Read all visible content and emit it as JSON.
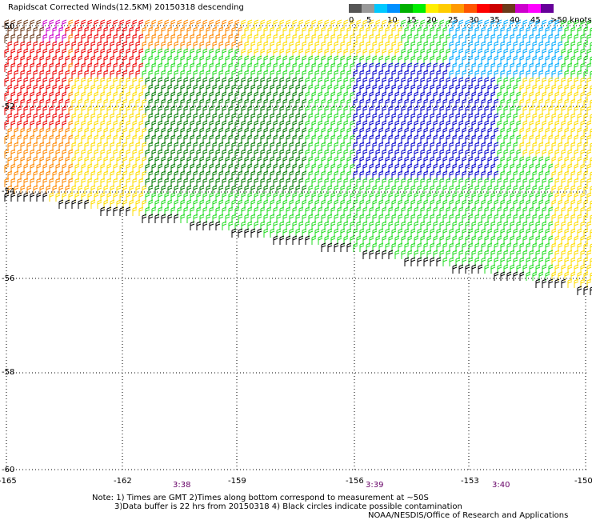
{
  "title": "Rapidscat Corrected Winds(12.5KM) 20150318 descending",
  "legend": {
    "colors": [
      "#555555",
      "#999999",
      "#00c8ff",
      "#0090ff",
      "#00b000",
      "#00ee00",
      "#ffee00",
      "#ffcc00",
      "#ff9900",
      "#ff5500",
      "#ff0000",
      "#cc0000",
      "#6b3a1a",
      "#cc00cc",
      "#ff00ff",
      "#660099"
    ],
    "labels": [
      "0",
      "5",
      "10",
      "15",
      "20",
      "25",
      "30",
      "35",
      "40",
      "45",
      ">50 knots"
    ]
  },
  "lat_labels": [
    "-50",
    "-52",
    "-54",
    "-56",
    "-58",
    "-60"
  ],
  "lon_labels": [
    "-165",
    "-162",
    "-159",
    "-156",
    "-153",
    "-150"
  ],
  "time_labels": [
    "3:38",
    "3:39",
    "3:40"
  ],
  "notes": [
    "Note: 1) Times are GMT 2)Times along bottom correspond to measurement at ~50S",
    "3)Data buffer is 22 hrs from 20150318 4) Black circles indicate possible contamination",
    "NOAA/NESDIS/Office of Research and Applications"
  ],
  "wind_colors": {
    "black": "#000000",
    "light_green": "#22dd22",
    "dark_green": "#007a00",
    "blue": "#0000cc",
    "cyan": "#00aaff",
    "yellow": "#ffdd00",
    "orange": "#ff8800",
    "red": "#ee0000",
    "magenta": "#cc00cc",
    "brown": "#6b3a1a"
  }
}
